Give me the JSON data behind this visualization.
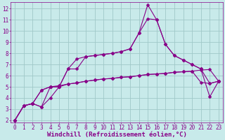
{
  "background_color": "#c8eaea",
  "grid_color": "#a0c8c8",
  "line_color": "#880088",
  "marker": "D",
  "marker_size": 2.5,
  "xlim": [
    -0.5,
    23.5
  ],
  "ylim": [
    1.8,
    12.6
  ],
  "yticks": [
    2,
    3,
    4,
    5,
    6,
    7,
    8,
    9,
    10,
    11,
    12
  ],
  "xticks": [
    0,
    1,
    2,
    3,
    4,
    5,
    6,
    7,
    8,
    9,
    10,
    11,
    12,
    13,
    14,
    15,
    16,
    17,
    18,
    19,
    20,
    21,
    22,
    23
  ],
  "xlabel": "Windchill (Refroidissement éolien,°C)",
  "xlabel_fontsize": 6.5,
  "tick_fontsize": 5.5,
  "line1_x": [
    0,
    1,
    2,
    3,
    4,
    5,
    6,
    7,
    8,
    9,
    10,
    11,
    12,
    13,
    14,
    15,
    16,
    17,
    18,
    19,
    20,
    21,
    22,
    23
  ],
  "line1_y": [
    2.0,
    3.3,
    3.5,
    4.7,
    5.0,
    5.1,
    5.25,
    5.35,
    5.5,
    5.6,
    5.7,
    5.75,
    5.85,
    5.9,
    6.0,
    6.1,
    6.15,
    6.2,
    6.3,
    6.35,
    6.4,
    6.5,
    6.55,
    5.5
  ],
  "line2_x": [
    0,
    1,
    2,
    3,
    4,
    5,
    6,
    7,
    8,
    9,
    10,
    11,
    12,
    13,
    14,
    15,
    16,
    17,
    18,
    19,
    20,
    21,
    22,
    23
  ],
  "line2_y": [
    2.0,
    3.3,
    3.5,
    3.2,
    5.0,
    5.0,
    6.6,
    7.5,
    7.7,
    7.8,
    7.9,
    8.0,
    8.15,
    8.4,
    9.8,
    12.35,
    11.0,
    8.8,
    7.8,
    7.4,
    7.0,
    6.6,
    4.1,
    5.5
  ],
  "line3_x": [
    0,
    1,
    2,
    3,
    4,
    5,
    6,
    7,
    8,
    9,
    10,
    11,
    12,
    13,
    14,
    15,
    16,
    17,
    18,
    19,
    20,
    21,
    22,
    23
  ],
  "line3_y": [
    2.0,
    3.3,
    3.5,
    4.7,
    5.0,
    5.0,
    6.6,
    6.6,
    7.7,
    7.8,
    7.9,
    8.0,
    8.15,
    8.4,
    9.8,
    11.1,
    11.0,
    8.8,
    7.8,
    7.4,
    7.0,
    6.6,
    5.3,
    5.5
  ],
  "line4_x": [
    0,
    1,
    2,
    3,
    4,
    5,
    6,
    7,
    8,
    9,
    10,
    11,
    12,
    13,
    14,
    15,
    16,
    17,
    18,
    19,
    20,
    21,
    22,
    23
  ],
  "line4_y": [
    2.0,
    3.3,
    3.5,
    3.2,
    4.0,
    5.0,
    5.25,
    5.35,
    5.5,
    5.6,
    5.7,
    5.75,
    5.85,
    5.9,
    6.0,
    6.1,
    6.15,
    6.2,
    6.3,
    6.35,
    6.4,
    5.4,
    5.3,
    5.5
  ]
}
